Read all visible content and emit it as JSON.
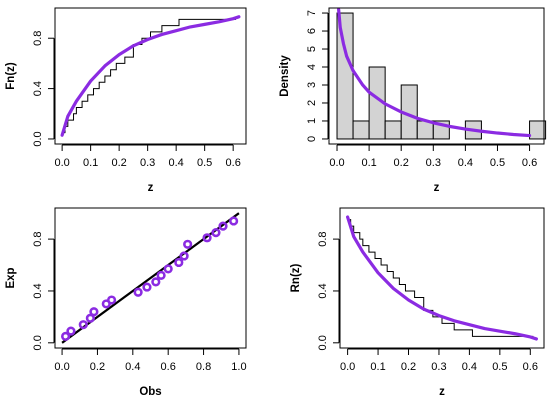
{
  "chart_data": [
    {
      "id": "ecdf",
      "type": "line",
      "xlabel": "z",
      "ylabel": "Fn(z)",
      "xlim": [
        -0.025,
        0.645
      ],
      "ylim": [
        -0.04,
        1.04
      ],
      "xticks": [
        0.0,
        0.1,
        0.2,
        0.3,
        0.4,
        0.5,
        0.6
      ],
      "xtick_labels": [
        "0.0",
        "0.1",
        "0.2",
        "0.3",
        "0.4",
        "0.5",
        "0.6"
      ],
      "yticks": [
        0.0,
        0.4,
        0.8
      ],
      "ytick_labels": [
        "0.0",
        "0.4",
        "0.8"
      ],
      "grid": false,
      "series": [
        {
          "kind": "step",
          "color": "#000000",
          "x": [
            0.0,
            0.01,
            0.02,
            0.04,
            0.05,
            0.07,
            0.09,
            0.11,
            0.13,
            0.15,
            0.17,
            0.19,
            0.22,
            0.25,
            0.28,
            0.31,
            0.35,
            0.41,
            0.47,
            0.61
          ],
          "y": [
            0.05,
            0.1,
            0.15,
            0.2,
            0.25,
            0.3,
            0.35,
            0.4,
            0.45,
            0.5,
            0.55,
            0.6,
            0.65,
            0.75,
            0.8,
            0.85,
            0.9,
            0.95,
            0.95,
            0.95
          ]
        },
        {
          "kind": "curve",
          "color": "#8b2be2",
          "x": [
            0.0,
            0.02,
            0.05,
            0.1,
            0.15,
            0.2,
            0.25,
            0.3,
            0.35,
            0.4,
            0.45,
            0.5,
            0.55,
            0.6,
            0.62
          ],
          "y": [
            0.03,
            0.18,
            0.3,
            0.46,
            0.58,
            0.67,
            0.74,
            0.79,
            0.83,
            0.86,
            0.89,
            0.91,
            0.93,
            0.955,
            0.97
          ]
        }
      ]
    },
    {
      "id": "histogram",
      "type": "bar",
      "xlabel": "z",
      "ylabel": "Density",
      "xlim": [
        -0.025,
        0.645
      ],
      "ylim": [
        -0.28,
        7.28
      ],
      "xticks": [
        0.0,
        0.1,
        0.2,
        0.3,
        0.4,
        0.5,
        0.6
      ],
      "xtick_labels": [
        "0.0",
        "0.1",
        "0.2",
        "0.3",
        "0.4",
        "0.5",
        "0.6"
      ],
      "yticks": [
        0,
        1,
        2,
        3,
        4,
        5,
        6,
        7
      ],
      "ytick_labels": [
        "0",
        "1",
        "2",
        "3",
        "4",
        "5",
        "6",
        "7"
      ],
      "grid": false,
      "bin_width": 0.05,
      "bars": {
        "fill": "#d3d3d3",
        "stroke": "#000000",
        "bin_starts": [
          0.0,
          0.05,
          0.1,
          0.15,
          0.2,
          0.25,
          0.3,
          0.35,
          0.4,
          0.45,
          0.5,
          0.55,
          0.6
        ],
        "values": [
          7,
          1,
          4,
          1,
          3,
          1,
          1,
          0,
          1,
          0,
          0,
          0,
          1
        ]
      },
      "series": [
        {
          "kind": "curve",
          "color": "#8b2be2",
          "x": [
            0.005,
            0.01,
            0.02,
            0.03,
            0.05,
            0.08,
            0.1,
            0.15,
            0.2,
            0.25,
            0.3,
            0.35,
            0.4,
            0.45,
            0.5,
            0.55,
            0.6
          ],
          "y": [
            7.2,
            6.2,
            5.3,
            4.6,
            3.8,
            3.0,
            2.6,
            1.95,
            1.5,
            1.15,
            0.9,
            0.7,
            0.55,
            0.43,
            0.33,
            0.25,
            0.19
          ]
        }
      ]
    },
    {
      "id": "pp-plot",
      "type": "scatter",
      "xlabel": "Obs",
      "ylabel": "Exp",
      "xlim": [
        -0.04,
        1.04
      ],
      "ylim": [
        -0.04,
        1.04
      ],
      "xticks": [
        0.0,
        0.2,
        0.4,
        0.6,
        0.8,
        1.0
      ],
      "xtick_labels": [
        "0.0",
        "0.2",
        "0.4",
        "0.6",
        "0.8",
        "1.0"
      ],
      "yticks": [
        0.0,
        0.4,
        0.8
      ],
      "ytick_labels": [
        "0.0",
        "0.4",
        "0.8"
      ],
      "grid": false,
      "reference_line": {
        "x": [
          0,
          1
        ],
        "y": [
          0,
          1
        ],
        "color": "#000000"
      },
      "points": {
        "color": "#8b2be2",
        "x": [
          0.02,
          0.05,
          0.12,
          0.16,
          0.18,
          0.25,
          0.28,
          0.43,
          0.48,
          0.53,
          0.56,
          0.6,
          0.66,
          0.69,
          0.71,
          0.82,
          0.87,
          0.91,
          0.97
        ],
        "y": [
          0.05,
          0.09,
          0.14,
          0.19,
          0.24,
          0.3,
          0.33,
          0.39,
          0.43,
          0.47,
          0.52,
          0.57,
          0.62,
          0.67,
          0.76,
          0.81,
          0.85,
          0.9,
          0.94
        ]
      }
    },
    {
      "id": "survival",
      "type": "line",
      "xlabel": "z",
      "ylabel": "Rn(z)",
      "xlim": [
        -0.025,
        0.645
      ],
      "ylim": [
        -0.04,
        1.04
      ],
      "xticks": [
        0.0,
        0.1,
        0.2,
        0.3,
        0.4,
        0.5,
        0.6
      ],
      "xtick_labels": [
        "0.0",
        "0.1",
        "0.2",
        "0.3",
        "0.4",
        "0.5",
        "0.6"
      ],
      "yticks": [
        0.0,
        0.4,
        0.8
      ],
      "ytick_labels": [
        "0.0",
        "0.4",
        "0.8"
      ],
      "grid": false,
      "series": [
        {
          "kind": "step",
          "color": "#000000",
          "x": [
            0.0,
            0.01,
            0.02,
            0.04,
            0.05,
            0.07,
            0.09,
            0.11,
            0.13,
            0.15,
            0.17,
            0.19,
            0.22,
            0.25,
            0.28,
            0.31,
            0.35,
            0.41,
            0.47,
            0.61
          ],
          "y": [
            0.95,
            0.9,
            0.85,
            0.8,
            0.75,
            0.7,
            0.65,
            0.6,
            0.55,
            0.5,
            0.45,
            0.4,
            0.35,
            0.25,
            0.2,
            0.15,
            0.1,
            0.05,
            0.05,
            0.05
          ]
        },
        {
          "kind": "curve",
          "color": "#8b2be2",
          "x": [
            0.0,
            0.02,
            0.05,
            0.1,
            0.15,
            0.2,
            0.25,
            0.3,
            0.35,
            0.4,
            0.45,
            0.5,
            0.55,
            0.6,
            0.62
          ],
          "y": [
            0.97,
            0.82,
            0.7,
            0.54,
            0.42,
            0.33,
            0.26,
            0.21,
            0.17,
            0.14,
            0.11,
            0.09,
            0.07,
            0.045,
            0.03
          ]
        }
      ]
    }
  ]
}
